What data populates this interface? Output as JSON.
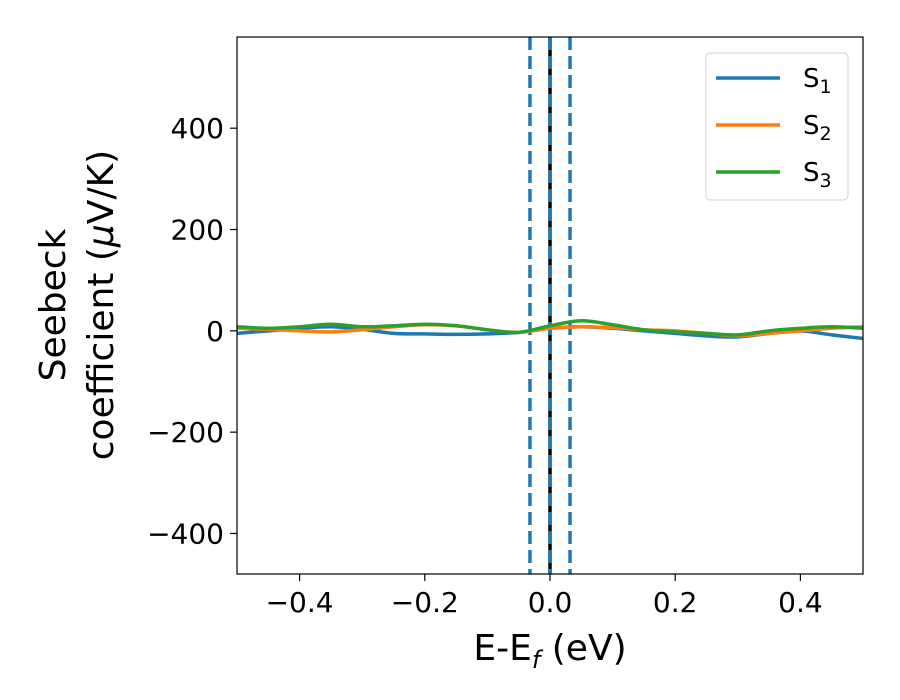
{
  "chart_data": {
    "type": "line",
    "xlabel": "E-E",
    "xlabel_sub": "f",
    "xlabel_unit": " (eV)",
    "ylabel_line1": "Seebeck",
    "ylabel_line2_prefix": "coefficient  (",
    "ylabel_mu": "μ",
    "ylabel_line2_suffix": "V/K)",
    "xlim": [
      -0.5,
      0.5
    ],
    "ylim": [
      -480,
      580
    ],
    "xticks": [
      -0.4,
      -0.2,
      0.0,
      0.2,
      0.4
    ],
    "xtick_labels": [
      "−0.4",
      "−0.2",
      "0.0",
      "0.2",
      "0.4"
    ],
    "yticks": [
      -400,
      -200,
      0,
      200,
      400
    ],
    "ytick_labels": [
      "−400",
      "−200",
      "0",
      "200",
      "400"
    ],
    "grid": false,
    "legend_position": "top-right",
    "vertical_lines": [
      {
        "x": -0.032,
        "style": "dashed",
        "color": "#1f77b4"
      },
      {
        "x": 0.0,
        "style": "solid",
        "color": "#000000"
      },
      {
        "x": 0.0,
        "style": "dashed",
        "color": "#1f77b4"
      },
      {
        "x": 0.032,
        "style": "dashed",
        "color": "#1f77b4"
      }
    ],
    "x": [
      -0.5,
      -0.45,
      -0.4,
      -0.35,
      -0.3,
      -0.25,
      -0.2,
      -0.15,
      -0.1,
      -0.05,
      0.0,
      0.05,
      0.1,
      0.15,
      0.2,
      0.25,
      0.3,
      0.35,
      0.4,
      0.45,
      0.5
    ],
    "series": [
      {
        "name": "S",
        "sub": "1",
        "color": "#1f77b4",
        "values": [
          -5,
          0,
          5,
          8,
          3,
          -5,
          -6,
          -7,
          -6,
          -3,
          5,
          8,
          5,
          0,
          -5,
          -10,
          -12,
          -5,
          0,
          -8,
          -15
        ]
      },
      {
        "name": "S",
        "sub": "2",
        "color": "#ff7f0e",
        "values": [
          5,
          3,
          0,
          -2,
          2,
          8,
          12,
          10,
          2,
          -3,
          5,
          8,
          6,
          2,
          0,
          -5,
          -10,
          -5,
          0,
          5,
          8
        ]
      },
      {
        "name": "S",
        "sub": "3",
        "color": "#2ca02c",
        "values": [
          8,
          5,
          8,
          13,
          8,
          10,
          13,
          10,
          2,
          -3,
          10,
          20,
          12,
          2,
          -2,
          -5,
          -8,
          0,
          5,
          8,
          5
        ]
      }
    ]
  }
}
